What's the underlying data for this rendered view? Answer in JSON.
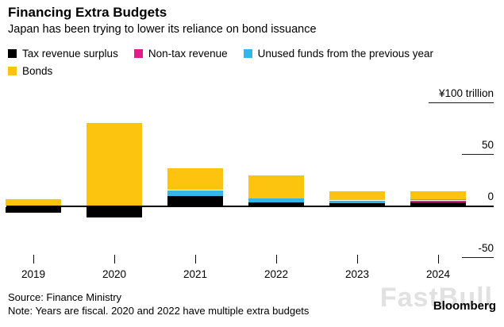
{
  "header": {
    "title": "Financing Extra Budgets",
    "subtitle": "Japan has been trying to lower its reliance on bond issuance"
  },
  "legend": [
    {
      "label": "Tax revenue surplus",
      "color": "#000000"
    },
    {
      "label": "Non-tax revenue",
      "color": "#e31c8e"
    },
    {
      "label": "Unused funds from the previous year",
      "color": "#35b5ea"
    },
    {
      "label": "Bonds",
      "color": "#fdc40f"
    }
  ],
  "footer": {
    "source": "Source: Finance Ministry",
    "note": "Note: Years are fiscal. 2020 and 2022 have multiple extra budgets",
    "brand": "Bloomberg",
    "watermark": "FastBull"
  },
  "chart_data": {
    "type": "bar",
    "stacked": true,
    "title": "Financing Extra Budgets",
    "subtitle": "Japan has been trying to lower its reliance on bond issuance",
    "categories": [
      "2019",
      "2020",
      "2021",
      "2022",
      "2023",
      "2024"
    ],
    "series": [
      {
        "name": "Tax revenue surplus",
        "color": "#000000",
        "values": [
          -5,
          -10,
          9,
          3,
          2,
          3
        ]
      },
      {
        "name": "Non-tax revenue",
        "color": "#e31c8e",
        "values": [
          0,
          0,
          0,
          0,
          0,
          2
        ]
      },
      {
        "name": "Unused funds from the previous year",
        "color": "#35b5ea",
        "values": [
          0,
          0,
          6,
          4,
          3,
          1
        ]
      },
      {
        "name": "Bonds",
        "color": "#fdc40f",
        "values": [
          6,
          80,
          21,
          22,
          9,
          8
        ]
      }
    ],
    "unit": "trillion yen",
    "ylabel": "¥100 trillion",
    "ylim": [
      -50,
      100
    ],
    "y_ticks": [
      {
        "value": 100,
        "label": "¥100 trillion"
      },
      {
        "value": 50,
        "label": "50"
      },
      {
        "value": 0,
        "label": "0"
      },
      {
        "value": -50,
        "label": "-50"
      }
    ],
    "grid": "right-stubs",
    "legend_position": "top-left"
  }
}
